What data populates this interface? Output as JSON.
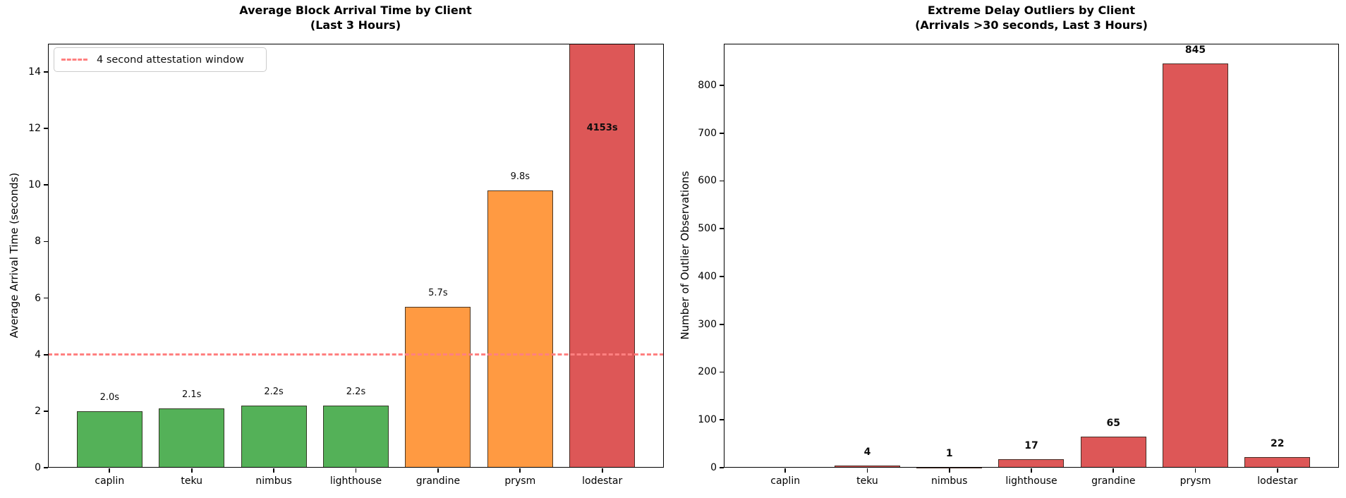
{
  "figure": {
    "background": "#ffffff"
  },
  "chart_data": [
    {
      "type": "bar",
      "title": "Average Block Arrival Time by Client",
      "subtitle": "(Last 3 Hours)",
      "xlabel": "",
      "ylabel": "Average Arrival Time (seconds)",
      "categories": [
        "caplin",
        "teku",
        "nimbus",
        "lighthouse",
        "grandine",
        "prysm",
        "lodestar"
      ],
      "values": [
        2.0,
        2.1,
        2.2,
        2.2,
        5.7,
        9.8,
        4153
      ],
      "bar_labels": [
        "2.0s",
        "2.1s",
        "2.2s",
        "2.2s",
        "5.7s",
        "9.8s",
        "4153s"
      ],
      "bar_colors": [
        "#54b158",
        "#54b158",
        "#54b158",
        "#54b158",
        "#ff9a42",
        "#ff9a42",
        "#dd5757"
      ],
      "bar_labels_bold": false,
      "ylim": [
        0,
        15
      ],
      "yticks": [
        0,
        2,
        4,
        6,
        8,
        10,
        12,
        14
      ],
      "grid": false,
      "legend_position": "upper left",
      "threshold_line": {
        "value": 4,
        "style": "dashed",
        "color": "#ff8080",
        "legend_label": "4 second attestation window"
      }
    },
    {
      "type": "bar",
      "title": "Extreme Delay Outliers by Client",
      "subtitle": "(Arrivals >30 seconds, Last 3 Hours)",
      "xlabel": "",
      "ylabel": "Number of Outlier Observations",
      "categories": [
        "caplin",
        "teku",
        "nimbus",
        "lighthouse",
        "grandine",
        "prysm",
        "lodestar"
      ],
      "values": [
        0,
        4,
        1,
        17,
        65,
        845,
        22
      ],
      "bar_labels": [
        "",
        "4",
        "1",
        "17",
        "65",
        "845",
        "22"
      ],
      "bar_color": "#dd5757",
      "bar_labels_bold": true,
      "ylim": [
        0,
        887
      ],
      "yticks": [
        0,
        100,
        200,
        300,
        400,
        500,
        600,
        700,
        800
      ],
      "grid": false
    }
  ]
}
